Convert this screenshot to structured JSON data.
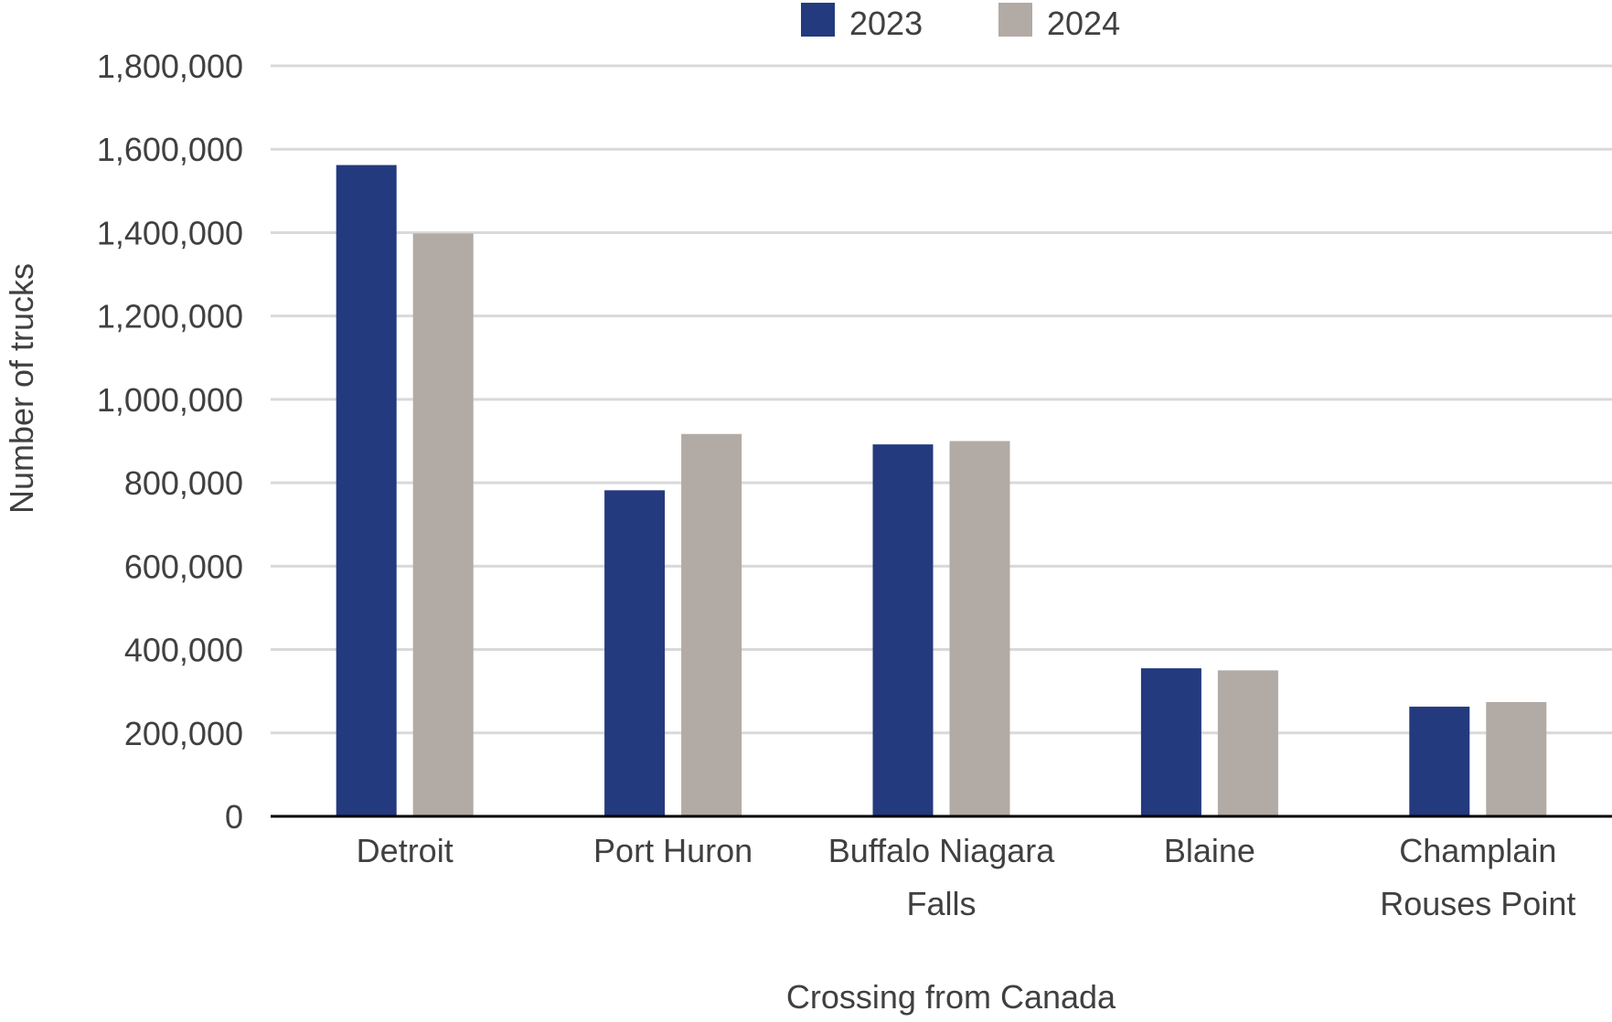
{
  "chart_data": {
    "type": "bar",
    "title": "",
    "xlabel": "Crossing from Canada",
    "ylabel": "Number of trucks",
    "categories": [
      [
        "Detroit"
      ],
      [
        "Port Huron"
      ],
      [
        "Buffalo Niagara",
        "Falls"
      ],
      [
        "Blaine"
      ],
      [
        "Champlain",
        "Rouses Point"
      ]
    ],
    "series": [
      {
        "name": "2023",
        "color": "#243a7e",
        "values": [
          1562000,
          782000,
          892000,
          355000,
          263000
        ]
      },
      {
        "name": "2024",
        "color": "#b2aaa4",
        "values": [
          1398000,
          917000,
          900000,
          350000,
          274000
        ]
      }
    ],
    "ylim": [
      0,
      1800000
    ],
    "yticks": [
      0,
      200000,
      400000,
      600000,
      800000,
      1000000,
      1200000,
      1400000,
      1600000,
      1800000
    ],
    "ytick_labels": [
      "0",
      "200,000",
      "400,000",
      "600,000",
      "800,000",
      "1,000,000",
      "1,200,000",
      "1,400,000",
      "1,600,000",
      "1,800,000"
    ],
    "grid": true,
    "legend_position": "top-center"
  }
}
